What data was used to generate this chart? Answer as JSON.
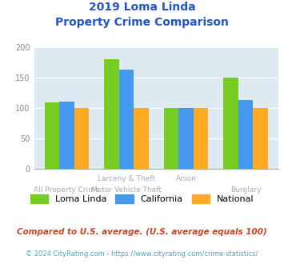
{
  "title_line1": "2019 Loma Linda",
  "title_line2": "Property Crime Comparison",
  "loma_linda": [
    109,
    181,
    100,
    150
  ],
  "california": [
    111,
    163,
    100,
    113
  ],
  "national": [
    100,
    100,
    100,
    100
  ],
  "cat_top": [
    "",
    "Larceny & Theft",
    "Arson",
    ""
  ],
  "cat_bot": [
    "All Property Crime",
    "Motor Vehicle Theft",
    "",
    "Burglary"
  ],
  "colors": {
    "loma_linda": "#77cc22",
    "california": "#4499ee",
    "national": "#ffaa22"
  },
  "ylim": [
    0,
    200
  ],
  "yticks": [
    0,
    50,
    100,
    150,
    200
  ],
  "subtitle": "Compared to U.S. average. (U.S. average equals 100)",
  "footer": "© 2024 CityRating.com - https://www.cityrating.com/crime-statistics/",
  "bg_color": "#deeaf1",
  "title_color": "#2255cc",
  "subtitle_color": "#cc4422",
  "footer_color": "#44aacc",
  "bar_width": 0.25
}
